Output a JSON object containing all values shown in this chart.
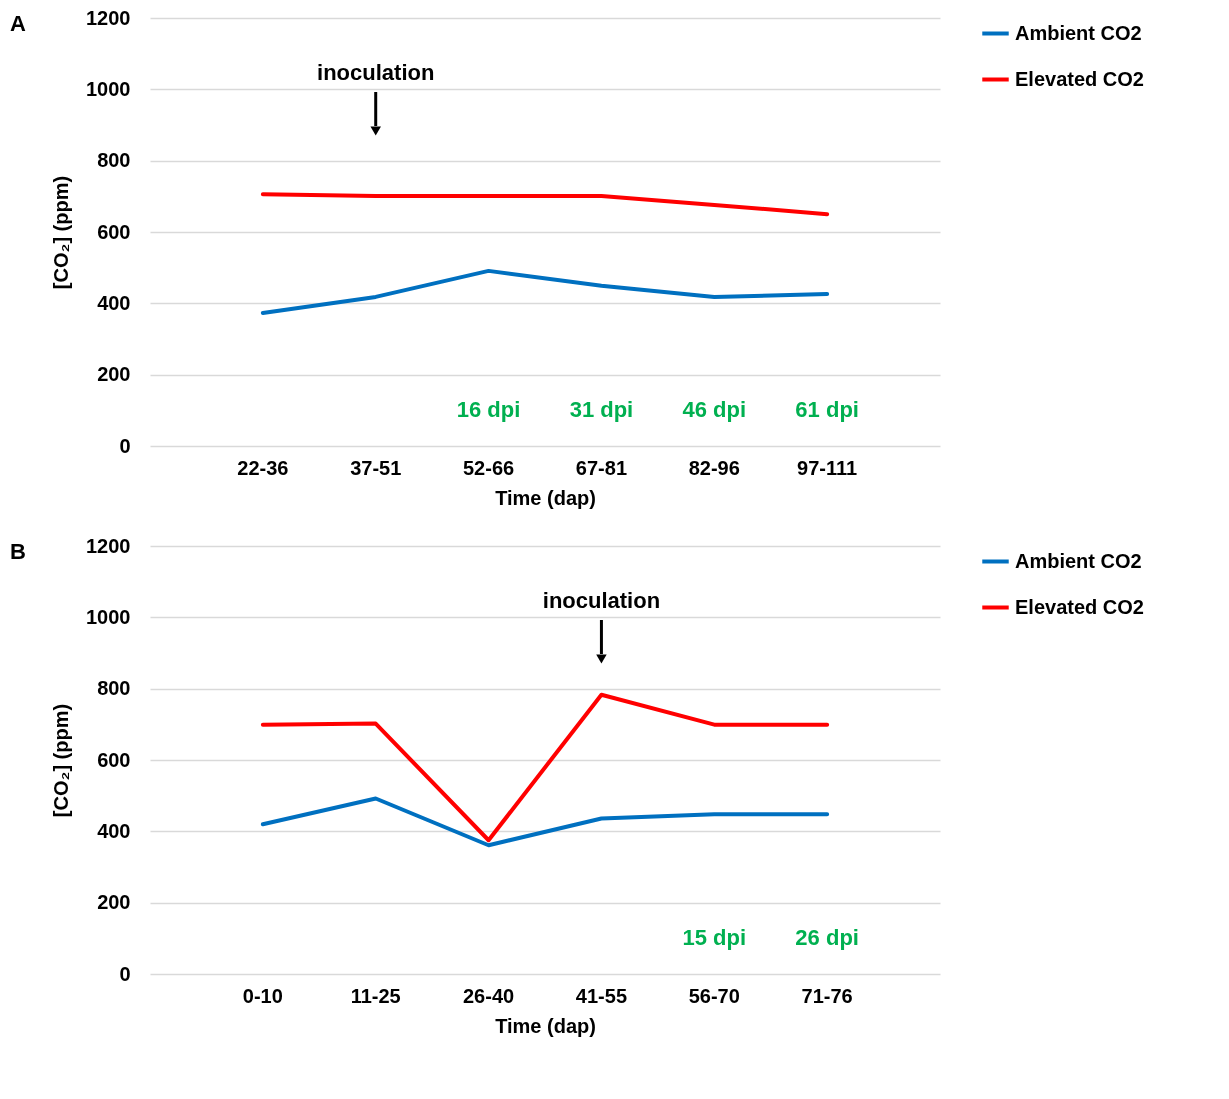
{
  "chart_data": [
    {
      "type": "line",
      "title": "A",
      "xlabel": "Time (dap)",
      "ylabel": "[CO₂] (ppm)",
      "categories": [
        "22-36",
        "37-51",
        "52-66",
        "67-81",
        "82-96",
        "97-111"
      ],
      "series": [
        {
          "name": "Ambient CO2",
          "color": "#0070c0",
          "values": [
            373,
            418,
            491,
            449,
            418,
            426
          ]
        },
        {
          "name": "Elevated CO2",
          "color": "#ff0000",
          "values": [
            706,
            701,
            701,
            701,
            676,
            650
          ]
        }
      ],
      "ylim": [
        0,
        1200
      ],
      "yticks": [
        0,
        200,
        400,
        600,
        800,
        1000,
        1200
      ],
      "grid": "y",
      "legend": "right",
      "marker": "none",
      "line_style": "solid",
      "annotations": [
        {
          "text": "inoculation",
          "x": "37-51"
        },
        "16 dpi",
        "31 dpi",
        "46 dpi",
        "61 dpi"
      ]
    },
    {
      "type": "line",
      "title": "B",
      "xlabel": "Time (dap)",
      "ylabel": "[CO₂] (ppm)",
      "categories": [
        "0-10",
        "11-25",
        "26-40",
        "41-55",
        "56-70",
        "71-76"
      ],
      "series": [
        {
          "name": "Ambient CO2",
          "color": "#0070c0",
          "values": [
            420,
            492,
            361,
            436,
            448,
            448
          ]
        },
        {
          "name": "Elevated CO2",
          "color": "#ff0000",
          "values": [
            699,
            702,
            375,
            783,
            699,
            699
          ]
        }
      ],
      "ylim": [
        0,
        1200
      ],
      "yticks": [
        0,
        200,
        400,
        600,
        800,
        1000,
        1200
      ],
      "grid": "y",
      "legend": "right",
      "marker": "none",
      "line_style": "solid",
      "annotations": [
        {
          "text": "inoculation",
          "x": "41-55"
        },
        "15 dpi",
        "26 dpi"
      ]
    }
  ]
}
